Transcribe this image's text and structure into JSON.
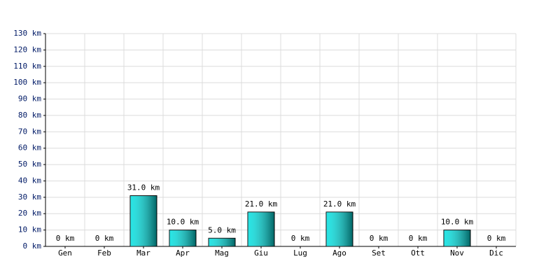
{
  "chart_data": {
    "type": "bar",
    "categories": [
      "Gen",
      "Feb",
      "Mar",
      "Apr",
      "Mag",
      "Giu",
      "Lug",
      "Ago",
      "Set",
      "Ott",
      "Nov",
      "Dic"
    ],
    "values": [
      0,
      0,
      31,
      10,
      5,
      21,
      0,
      21,
      0,
      0,
      10,
      0
    ],
    "value_labels": [
      "0 km",
      "0 km",
      "31.0 km",
      "10.0 km",
      "5.0 km",
      "21.0 km",
      "0 km",
      "21.0 km",
      "0 km",
      "0 km",
      "10.0 km",
      "0 km"
    ],
    "color": "#00e0e0",
    "ylim": [
      0,
      130
    ],
    "yticks": [
      {
        "value": 0,
        "label": "0 km"
      },
      {
        "value": 10,
        "label": "10 km"
      },
      {
        "value": 20,
        "label": "20 km"
      },
      {
        "value": 30,
        "label": "30 km"
      },
      {
        "value": 40,
        "label": "40 km"
      },
      {
        "value": 50,
        "label": "50 km"
      },
      {
        "value": 60,
        "label": "60 km"
      },
      {
        "value": 70,
        "label": "70 km"
      },
      {
        "value": 80,
        "label": "80 km"
      },
      {
        "value": 90,
        "label": "90 km"
      },
      {
        "value": 100,
        "label": "100 km"
      },
      {
        "value": 110,
        "label": "110 km"
      },
      {
        "value": 120,
        "label": "120 km"
      },
      {
        "value": 130,
        "label": "130 km"
      }
    ],
    "grid": true
  }
}
